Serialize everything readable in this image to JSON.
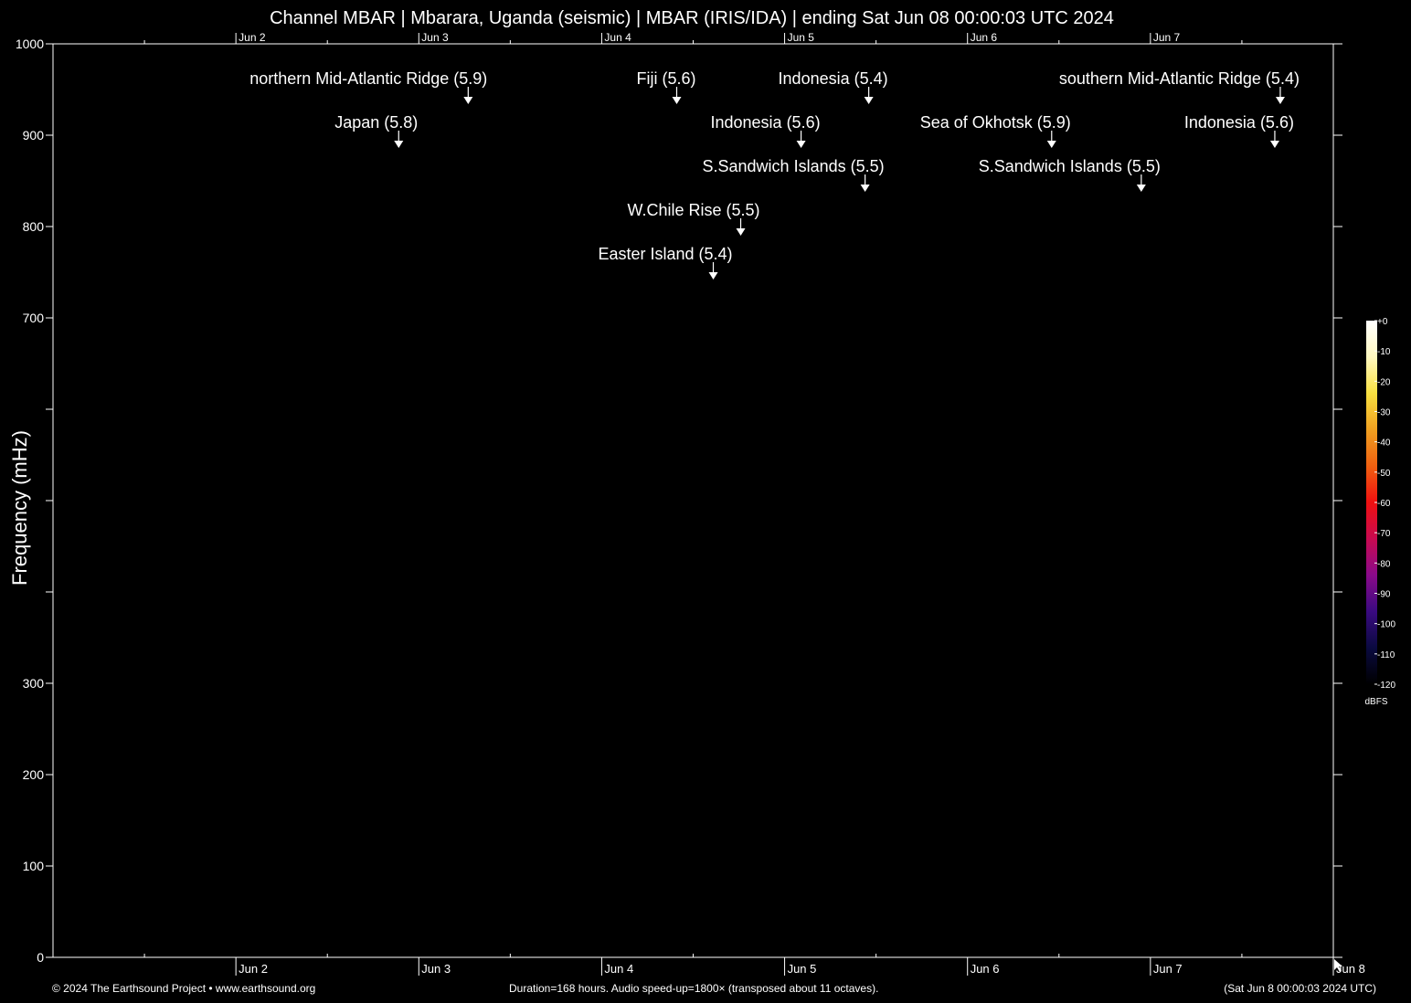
{
  "title": "Channel MBAR | Mbarara, Uganda (seismic) | MBAR (IRIS/IDA) | ending Sat Jun 08 00:00:03 UTC 2024",
  "footer": {
    "copyright": "© 2024 The Earthsound Project • www.earthsound.org",
    "duration": "Duration=168 hours. Audio speed-up=1800× (transposed about 11 octaves).",
    "end_time": "(Sat Jun  8 00:00:03 2024 UTC)"
  },
  "colors": {
    "background": "#000000",
    "foreground": "#ffffff"
  },
  "chart_data": {
    "type": "heatmap",
    "title": "Channel MBAR | Mbarara, Uganda (seismic) | MBAR (IRIS/IDA) | ending Sat Jun 08 00:00:03 UTC 2024",
    "xlabel": "",
    "ylabel": "Frequency (mHz)",
    "xlim_days": [
      0,
      7
    ],
    "ylim": [
      0,
      1000
    ],
    "x_ticks": [
      {
        "day": 1,
        "label": "Jun  2"
      },
      {
        "day": 2,
        "label": "Jun  3"
      },
      {
        "day": 3,
        "label": "Jun  4"
      },
      {
        "day": 4,
        "label": "Jun  5"
      },
      {
        "day": 5,
        "label": "Jun  6"
      },
      {
        "day": 6,
        "label": "Jun  7"
      },
      {
        "day": 7,
        "label": "Jun  8"
      }
    ],
    "top_x_ticks": [
      {
        "day": 1,
        "label": "Jun  2"
      },
      {
        "day": 2,
        "label": "Jun  3"
      },
      {
        "day": 3,
        "label": "Jun  4"
      },
      {
        "day": 4,
        "label": "Jun  5"
      },
      {
        "day": 5,
        "label": "Jun  6"
      },
      {
        "day": 6,
        "label": "Jun  7"
      }
    ],
    "y_ticks": [
      {
        "value": 0,
        "label": "0"
      },
      {
        "value": 100,
        "label": "100"
      },
      {
        "value": 200,
        "label": "200"
      },
      {
        "value": 300,
        "label": "300"
      },
      {
        "value": 400,
        "label": ""
      },
      {
        "value": 500,
        "label": ""
      },
      {
        "value": 600,
        "label": ""
      },
      {
        "value": 700,
        "label": "700"
      },
      {
        "value": 800,
        "label": "800"
      },
      {
        "value": 900,
        "label": "900"
      },
      {
        "value": 1000,
        "label": "1000"
      }
    ],
    "events": [
      {
        "label": "northern Mid-Atlantic Ridge (5.9)",
        "day": 2.27,
        "level": 0
      },
      {
        "label": "Fiji (5.6)",
        "day": 3.41,
        "level": 0
      },
      {
        "label": "Indonesia (5.4)",
        "day": 4.46,
        "level": 0
      },
      {
        "label": "southern Mid-Atlantic Ridge (5.4)",
        "day": 6.71,
        "level": 0
      },
      {
        "label": "Japan (5.8)",
        "day": 1.89,
        "level": 1
      },
      {
        "label": "Indonesia (5.6)",
        "day": 4.09,
        "level": 1
      },
      {
        "label": "Sea of Okhotsk (5.9)",
        "day": 5.46,
        "level": 1
      },
      {
        "label": "Indonesia (5.6)",
        "day": 6.68,
        "level": 1
      },
      {
        "label": "S.Sandwich Islands (5.5)",
        "day": 4.44,
        "level": 2
      },
      {
        "label": "S.Sandwich Islands (5.5)",
        "day": 5.95,
        "level": 2
      },
      {
        "label": "W.Chile Rise (5.5)",
        "day": 3.76,
        "level": 3
      },
      {
        "label": "Easter Island (5.4)",
        "day": 3.61,
        "level": 4
      }
    ],
    "colorbar": {
      "unit": "dBFS",
      "range": [
        -120,
        0
      ],
      "ticks": [
        {
          "value": 0,
          "label": "+0"
        },
        {
          "value": -10,
          "label": "-10"
        },
        {
          "value": -20,
          "label": "-20"
        },
        {
          "value": -30,
          "label": "-30"
        },
        {
          "value": -40,
          "label": "-40"
        },
        {
          "value": -50,
          "label": "-50"
        },
        {
          "value": -60,
          "label": "-60"
        },
        {
          "value": -70,
          "label": "-70"
        },
        {
          "value": -80,
          "label": "-80"
        },
        {
          "value": -90,
          "label": "-90"
        },
        {
          "value": -100,
          "label": "-100"
        },
        {
          "value": -110,
          "label": "-110"
        },
        {
          "value": -120,
          "label": "-120"
        }
      ],
      "gradient": [
        "#000000",
        "#0a0a40",
        "#3a0a80",
        "#8a0a8a",
        "#c80a50",
        "#f01010",
        "#f06010",
        "#f0a020",
        "#f8e040",
        "#fff8c0",
        "#ffffff"
      ]
    }
  }
}
